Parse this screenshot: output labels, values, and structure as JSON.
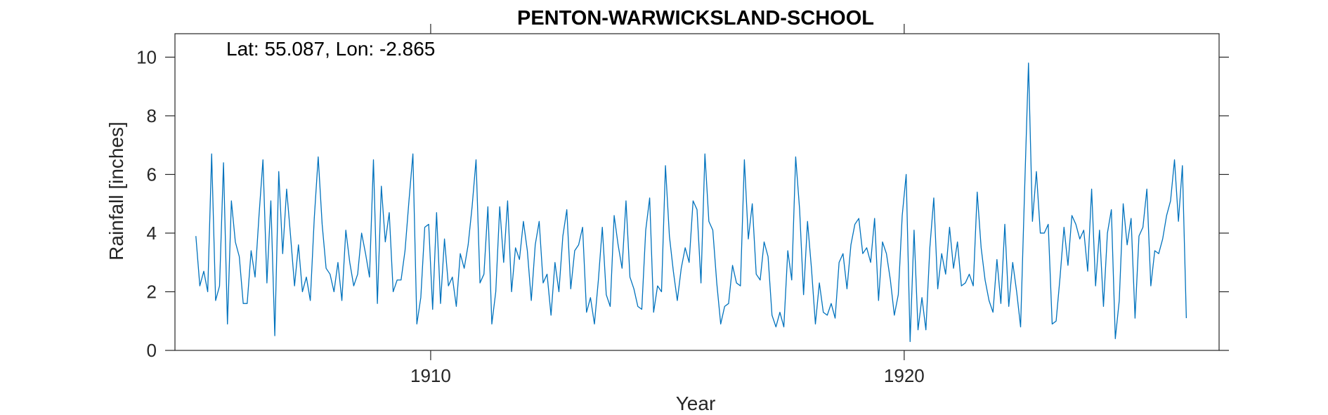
{
  "chart_data": {
    "type": "line",
    "title": "PENTON-WARWICKSLAND-SCHOOL",
    "annotation": "Lat: 55.087, Lon: -2.865",
    "xlabel": "Year",
    "ylabel": "Rainfall [inches]",
    "xlim": [
      1904.6,
      1926.65
    ],
    "ylim": [
      0,
      10.8
    ],
    "xticks": [
      1910,
      1920
    ],
    "yticks": [
      0,
      2,
      4,
      6,
      8,
      10
    ],
    "grid": false,
    "series_color": "#0072BD",
    "series": [
      {
        "x_start": 1905.0417,
        "x_step": 0.083333,
        "values": [
          3.9,
          2.2,
          2.7,
          2.0,
          6.7,
          1.7,
          2.2,
          6.4,
          0.9,
          5.1,
          3.7,
          3.2,
          1.6,
          1.6,
          3.4,
          2.5,
          4.6,
          6.5,
          2.3,
          5.1,
          0.5,
          6.1,
          3.3,
          5.5,
          3.9,
          2.2,
          3.6,
          2.0,
          2.5,
          1.7,
          4.5,
          6.6,
          4.3,
          2.8,
          2.6,
          2.0,
          3.0,
          1.7,
          4.1,
          3.0,
          2.2,
          2.6,
          4.0,
          3.3,
          2.5,
          6.5,
          1.6,
          5.6,
          3.7,
          4.7,
          2.0,
          2.4,
          2.4,
          3.4,
          5.1,
          6.7,
          0.9,
          1.8,
          4.2,
          4.3,
          1.4,
          4.7,
          1.6,
          3.8,
          2.2,
          2.5,
          1.5,
          3.3,
          2.8,
          3.6,
          4.9,
          6.5,
          2.3,
          2.6,
          4.9,
          0.9,
          2.0,
          4.9,
          3.0,
          5.1,
          2.0,
          3.5,
          3.1,
          4.4,
          3.4,
          1.7,
          3.6,
          4.4,
          2.3,
          2.6,
          1.2,
          3.0,
          2.0,
          3.9,
          4.8,
          2.1,
          3.4,
          3.6,
          4.2,
          1.3,
          1.8,
          0.9,
          2.4,
          4.2,
          1.9,
          1.5,
          4.6,
          3.6,
          2.8,
          5.1,
          2.5,
          2.1,
          1.5,
          1.4,
          4.1,
          5.2,
          1.3,
          2.2,
          2.0,
          6.3,
          3.9,
          2.7,
          1.7,
          2.8,
          3.5,
          3.0,
          5.1,
          4.8,
          2.3,
          6.7,
          4.4,
          4.1,
          2.3,
          0.9,
          1.5,
          1.6,
          2.9,
          2.3,
          2.2,
          6.5,
          3.8,
          5.0,
          2.6,
          2.4,
          3.7,
          3.2,
          1.2,
          0.8,
          1.3,
          0.8,
          3.4,
          2.4,
          6.6,
          4.8,
          1.9,
          4.4,
          2.8,
          0.9,
          2.3,
          1.3,
          1.2,
          1.6,
          1.1,
          3.0,
          3.3,
          2.1,
          3.6,
          4.3,
          4.5,
          3.3,
          3.5,
          3.0,
          4.5,
          1.7,
          3.7,
          3.3,
          2.4,
          1.2,
          1.9,
          4.6,
          6.0,
          0.3,
          4.1,
          0.7,
          1.8,
          0.7,
          3.5,
          5.2,
          2.1,
          3.3,
          2.6,
          4.2,
          2.8,
          3.7,
          2.2,
          2.3,
          2.6,
          2.2,
          5.4,
          3.5,
          2.4,
          1.7,
          1.3,
          3.1,
          1.6,
          4.3,
          1.5,
          3.0,
          2.0,
          0.8,
          5.4,
          9.8,
          4.4,
          6.1,
          4.0,
          4.0,
          4.3,
          0.9,
          1.0,
          2.5,
          4.2,
          2.9,
          4.6,
          4.3,
          3.8,
          4.1,
          2.7,
          5.5,
          2.2,
          4.1,
          1.5,
          4.0,
          4.8,
          0.4,
          1.7,
          5.0,
          3.6,
          4.5,
          1.1,
          3.9,
          4.2,
          5.5,
          2.2,
          3.4,
          3.3,
          3.8,
          4.6,
          5.1,
          6.5,
          4.4,
          6.3,
          1.1
        ]
      }
    ]
  }
}
